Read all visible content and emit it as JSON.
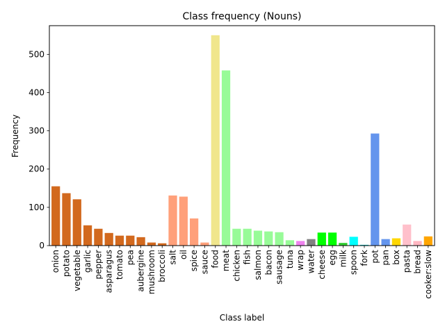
{
  "chart_data": {
    "type": "bar",
    "title": "Class frequency (Nouns)",
    "xlabel": "Class label",
    "ylabel": "Frequency",
    "ylim": [
      0,
      575
    ],
    "yticks": [
      0,
      100,
      200,
      300,
      400,
      500
    ],
    "grid": false,
    "categories": [
      "onion",
      "potato",
      "vegetable",
      "garlic",
      "pepper",
      "asparagus",
      "tomato",
      "pea",
      "aubergine",
      "mushroom",
      "broccoli",
      "salt",
      "oil",
      "spice",
      "sauce",
      "food",
      "meat",
      "chicken",
      "fish",
      "salmon",
      "bacon",
      "sausage",
      "tuna",
      "wrap",
      "water",
      "cheese",
      "egg",
      "milk",
      "spoon",
      "fork",
      "pot",
      "pan",
      "box",
      "pasta",
      "bread",
      "cooker:slow"
    ],
    "values": [
      155,
      137,
      121,
      53,
      44,
      33,
      26,
      26,
      22,
      8,
      6,
      131,
      128,
      71,
      8,
      550,
      458,
      44,
      44,
      39,
      37,
      35,
      14,
      12,
      17,
      34,
      34,
      7,
      23,
      2,
      293,
      17,
      19,
      55,
      12,
      24
    ],
    "colors": [
      "#d2691e",
      "#d2691e",
      "#d2691e",
      "#d2691e",
      "#d2691e",
      "#d2691e",
      "#d2691e",
      "#d2691e",
      "#d2691e",
      "#d2691e",
      "#d2691e",
      "#ffa07a",
      "#ffa07a",
      "#ffa07a",
      "#ffa07a",
      "#f0e68c",
      "#98fb98",
      "#98fb98",
      "#98fb98",
      "#98fb98",
      "#98fb98",
      "#98fb98",
      "#98fb98",
      "#ee82ee",
      "#808080",
      "#00ff00",
      "#00ff00",
      "#32cd32",
      "#00ffff",
      "#00ced1",
      "#6495ed",
      "#6495ed",
      "#ffd700",
      "#ffc0cb",
      "#ffb6c1",
      "#ffa500"
    ]
  }
}
